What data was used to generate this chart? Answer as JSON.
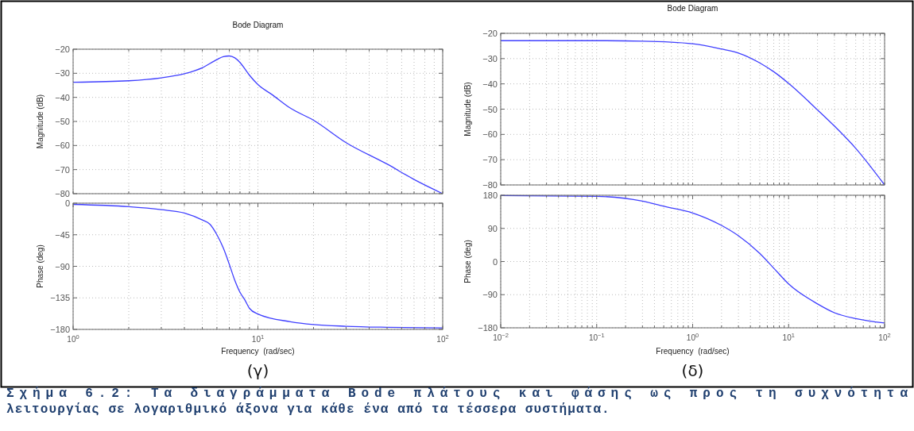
{
  "chart_data": [
    {
      "type": "line",
      "title": "Bode Diagram",
      "ylabel": "Magnitude (dB)",
      "log": "x",
      "grid": true,
      "tick_labels": "y",
      "xlim": [
        1,
        100
      ],
      "xticks": [
        {
          "value": 1,
          "label": null
        },
        {
          "value": 2,
          "label": null
        },
        {
          "value": 3,
          "label": null
        },
        {
          "value": 4,
          "label": null
        },
        {
          "value": 5,
          "label": null
        },
        {
          "value": 6,
          "label": null
        },
        {
          "value": 7,
          "label": null
        },
        {
          "value": 8,
          "label": null
        },
        {
          "value": 9,
          "label": null
        },
        {
          "value": 10,
          "label": null
        },
        {
          "value": 20,
          "label": null
        },
        {
          "value": 30,
          "label": null
        },
        {
          "value": 40,
          "label": null
        },
        {
          "value": 50,
          "label": null
        },
        {
          "value": 60,
          "label": null
        },
        {
          "value": 70,
          "label": null
        },
        {
          "value": 80,
          "label": null
        },
        {
          "value": 90,
          "label": null
        },
        {
          "value": 100,
          "label": null
        }
      ],
      "ylim": [
        -80,
        -20
      ],
      "yticks": [
        -80,
        -70,
        -60,
        -50,
        -40,
        -30,
        -20
      ],
      "x": [
        1,
        2,
        3,
        4,
        5,
        6,
        6.5,
        7,
        7.5,
        8,
        9,
        10,
        12,
        15,
        20,
        30,
        50,
        70,
        100
      ],
      "series": [
        {
          "color": "#3f3fff",
          "values": [
            -33.7,
            -33.1,
            -31.9,
            -30.2,
            -27.7,
            -24.3,
            -23.1,
            -22.8,
            -23.6,
            -25.5,
            -30.8,
            -34.7,
            -39,
            -44.5,
            -49.5,
            -58.8,
            -67.7,
            -74.1,
            -80
          ]
        }
      ]
    },
    {
      "type": "line",
      "xlabel": "Frequency  (rad/sec)",
      "ylabel": "Phase (deg)",
      "log": "x",
      "grid": true,
      "annotations": [
        "(γ)"
      ],
      "xlim": [
        1,
        100
      ],
      "xticks": [
        {
          "value": 1,
          "label": "10$^{0}$"
        },
        {
          "value": 2,
          "label": null
        },
        {
          "value": 3,
          "label": null
        },
        {
          "value": 4,
          "label": null
        },
        {
          "value": 5,
          "label": null
        },
        {
          "value": 6,
          "label": null
        },
        {
          "value": 7,
          "label": null
        },
        {
          "value": 8,
          "label": null
        },
        {
          "value": 9,
          "label": null
        },
        {
          "value": 10,
          "label": "10$^{1}$"
        },
        {
          "value": 20,
          "label": null
        },
        {
          "value": 30,
          "label": null
        },
        {
          "value": 40,
          "label": null
        },
        {
          "value": 50,
          "label": null
        },
        {
          "value": 60,
          "label": null
        },
        {
          "value": 70,
          "label": null
        },
        {
          "value": 80,
          "label": null
        },
        {
          "value": 90,
          "label": null
        },
        {
          "value": 100,
          "label": "10$^{2}$"
        }
      ],
      "ylim": [
        -180,
        0
      ],
      "yticks": [
        -180,
        -135,
        -90,
        -45,
        0
      ],
      "x": [
        1,
        2,
        3,
        4,
        5,
        5.5,
        6,
        6.5,
        7,
        7.5,
        8,
        8.5,
        9,
        10,
        15,
        20,
        30,
        50,
        100
      ],
      "series": [
        {
          "color": "#3f3fff",
          "values": [
            -1.7,
            -5,
            -9.3,
            -14,
            -24,
            -30,
            -45,
            -64,
            -87,
            -110,
            -127,
            -138,
            -150,
            -158,
            -169,
            -173,
            -175.5,
            -177,
            -178
          ]
        }
      ]
    },
    {
      "type": "line",
      "title": "Bode Diagram",
      "ylabel": "Magnitude (dB)",
      "log": "x",
      "grid": true,
      "tick_labels": "y",
      "xlim": [
        0.01,
        100
      ],
      "xticks": [
        {
          "value": 0.01,
          "label": null
        },
        {
          "value": 0.02,
          "label": null
        },
        {
          "value": 0.03,
          "label": null
        },
        {
          "value": 0.04,
          "label": null
        },
        {
          "value": 0.05,
          "label": null
        },
        {
          "value": 0.06,
          "label": null
        },
        {
          "value": 0.07,
          "label": null
        },
        {
          "value": 0.08,
          "label": null
        },
        {
          "value": 0.09,
          "label": null
        },
        {
          "value": 0.1,
          "label": null
        },
        {
          "value": 0.2,
          "label": null
        },
        {
          "value": 0.3,
          "label": null
        },
        {
          "value": 0.4,
          "label": null
        },
        {
          "value": 0.5,
          "label": null
        },
        {
          "value": 0.6,
          "label": null
        },
        {
          "value": 0.7,
          "label": null
        },
        {
          "value": 0.8,
          "label": null
        },
        {
          "value": 0.9,
          "label": null
        },
        {
          "value": 1,
          "label": null
        },
        {
          "value": 2,
          "label": null
        },
        {
          "value": 3,
          "label": null
        },
        {
          "value": 4,
          "label": null
        },
        {
          "value": 5,
          "label": null
        },
        {
          "value": 6,
          "label": null
        },
        {
          "value": 7,
          "label": null
        },
        {
          "value": 8,
          "label": null
        },
        {
          "value": 9,
          "label": null
        },
        {
          "value": 10,
          "label": null
        },
        {
          "value": 20,
          "label": null
        },
        {
          "value": 30,
          "label": null
        },
        {
          "value": 40,
          "label": null
        },
        {
          "value": 50,
          "label": null
        },
        {
          "value": 60,
          "label": null
        },
        {
          "value": 70,
          "label": null
        },
        {
          "value": 80,
          "label": null
        },
        {
          "value": 90,
          "label": null
        },
        {
          "value": 100,
          "label": null
        }
      ],
      "ylim": [
        -80,
        -20
      ],
      "yticks": [
        -80,
        -70,
        -60,
        -50,
        -40,
        -30,
        -20
      ],
      "x": [
        0.01,
        0.1,
        0.3,
        1,
        2,
        3,
        5,
        7,
        10,
        20,
        30,
        50,
        100
      ],
      "series": [
        {
          "color": "#3f3fff",
          "values": [
            -22.9,
            -22.9,
            -23.1,
            -24.1,
            -26.2,
            -27.8,
            -31.7,
            -35.2,
            -39.8,
            -50.3,
            -56.7,
            -65.5,
            -80
          ]
        }
      ]
    },
    {
      "type": "line",
      "xlabel": "Frequency  (rad/sec)",
      "ylabel": "Phase (deg)",
      "log": "x",
      "grid": true,
      "annotations": [
        "(δ)",
        "Σχήμα 6.2: Τα διαγράμματα Bode πλάτους και φάσης ως προς τη συχνότητα",
        "λειτουργίας σε λογαριθμικό άξονα για κάθε ένα από τα τέσσερα συστήματα."
      ],
      "xlim": [
        0.01,
        100
      ],
      "xticks": [
        {
          "value": 0.01,
          "label": "10$^{−2}$"
        },
        {
          "value": 0.02,
          "label": null
        },
        {
          "value": 0.03,
          "label": null
        },
        {
          "value": 0.04,
          "label": null
        },
        {
          "value": 0.05,
          "label": null
        },
        {
          "value": 0.06,
          "label": null
        },
        {
          "value": 0.07,
          "label": null
        },
        {
          "value": 0.08,
          "label": null
        },
        {
          "value": 0.09,
          "label": null
        },
        {
          "value": 0.1,
          "label": "10$^{−1}$"
        },
        {
          "value": 0.2,
          "label": null
        },
        {
          "value": 0.3,
          "label": null
        },
        {
          "value": 0.4,
          "label": null
        },
        {
          "value": 0.5,
          "label": null
        },
        {
          "value": 0.6,
          "label": null
        },
        {
          "value": 0.7,
          "label": null
        },
        {
          "value": 0.8,
          "label": null
        },
        {
          "value": 0.9,
          "label": null
        },
        {
          "value": 1,
          "label": "10$^{0}$"
        },
        {
          "value": 2,
          "label": null
        },
        {
          "value": 3,
          "label": null
        },
        {
          "value": 4,
          "label": null
        },
        {
          "value": 5,
          "label": null
        },
        {
          "value": 6,
          "label": null
        },
        {
          "value": 7,
          "label": null
        },
        {
          "value": 8,
          "label": null
        },
        {
          "value": 9,
          "label": null
        },
        {
          "value": 10,
          "label": "10$^{1}$"
        },
        {
          "value": 20,
          "label": null
        },
        {
          "value": 30,
          "label": null
        },
        {
          "value": 40,
          "label": null
        },
        {
          "value": 50,
          "label": null
        },
        {
          "value": 60,
          "label": null
        },
        {
          "value": 70,
          "label": null
        },
        {
          "value": 80,
          "label": null
        },
        {
          "value": 90,
          "label": null
        },
        {
          "value": 100,
          "label": "10$^{2}$"
        }
      ],
      "ylim": [
        -180,
        180
      ],
      "yticks": [
        -180,
        -90,
        0,
        90,
        180
      ],
      "x": [
        0.01,
        0.1,
        0.3,
        0.5,
        1,
        2,
        3,
        5,
        7,
        10,
        20,
        30,
        50,
        100
      ],
      "series": [
        {
          "color": "#3f3fff",
          "values": [
            179,
            177,
            164,
            150,
            132,
            98,
            70,
            22,
            -18,
            -61,
            -115,
            -139,
            -155,
            -167
          ]
        }
      ]
    }
  ]
}
